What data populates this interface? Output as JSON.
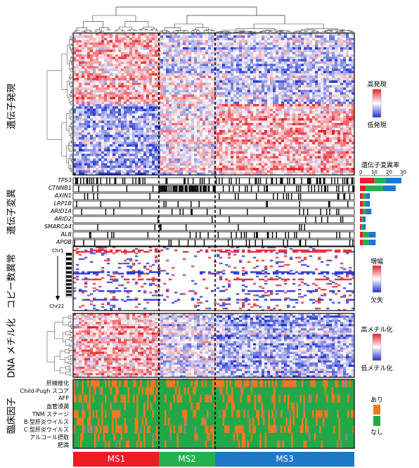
{
  "sections": {
    "expression": "遺伝子発現",
    "mutation": "遺伝子変異",
    "copy_number": "コピー数異常",
    "methylation": "DNA メチル化",
    "clinical": "臨床因子"
  },
  "subtypes": [
    {
      "label": "MS1",
      "color": "#ee1c25"
    },
    {
      "label": "MS2",
      "color": "#22b14c"
    },
    {
      "label": "MS3",
      "color": "#1f78c8"
    }
  ],
  "genes": [
    "TP53",
    "CTNNB1",
    "AXIN1",
    "LRP1B",
    "ARID1A",
    "ARID2",
    "SMARCA4",
    "ALB",
    "APOB"
  ],
  "mutation_rate": {
    "title": "遺伝子変異率",
    "ticks": [
      "0",
      "10",
      "20",
      "30"
    ],
    "axis_max": 30,
    "values": [
      [
        10,
        8,
        11
      ],
      [
        4,
        12,
        9
      ],
      [
        2,
        2,
        3
      ],
      [
        2,
        2,
        3
      ],
      [
        2,
        2,
        4
      ],
      [
        1,
        1,
        2
      ],
      [
        1,
        1,
        2
      ],
      [
        2,
        4,
        5
      ],
      [
        2,
        4,
        5
      ]
    ]
  },
  "chromosomes": {
    "top": "Chr1",
    "bottom": "Chr22"
  },
  "clinical_factors": [
    "肝線維化",
    "Child-Pugh スコア",
    "AFP",
    "血管浸潤",
    "TNM ステージ",
    "B 型肝炎ウイルス",
    "C 型肝炎ウイルス",
    "アルコール摂取",
    "肥満"
  ],
  "legends": {
    "expression": {
      "high": "高発現",
      "low": "低発現"
    },
    "copy_number": {
      "high": "増幅",
      "low": "欠失"
    },
    "methylation": {
      "high": "高メチル化",
      "low": "低メチル化"
    },
    "clinical": {
      "yes": "あり",
      "no": "なし"
    }
  },
  "colors": {
    "high": "#e8202a",
    "low": "#2030d0",
    "clin_yes": "#f07820",
    "clin_no": "#22a848"
  }
}
